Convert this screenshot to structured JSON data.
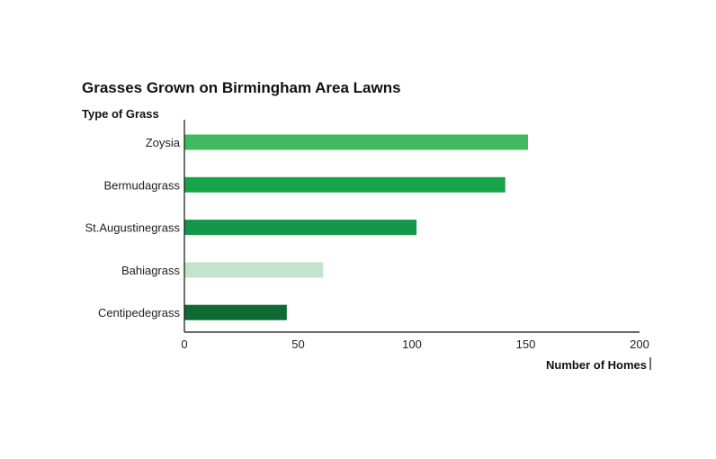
{
  "chart_data": {
    "type": "bar",
    "orientation": "horizontal",
    "title": "Grasses Grown on Birmingham Area Lawns",
    "ylabel": "Type of Grass",
    "xlabel": "Number of Homes",
    "categories": [
      "Zoysia",
      "Bermudagrass",
      "St.Augustinegrass",
      "Bahiagrass",
      "Centipedegrass"
    ],
    "values": [
      151,
      141,
      102,
      61,
      45
    ],
    "colors": [
      "#40b860",
      "#17a34a",
      "#14964a",
      "#c3e4cb",
      "#0f6a33"
    ],
    "xlim": [
      0,
      200
    ],
    "xticks": [
      "0",
      "50",
      "100",
      "150",
      "200"
    ],
    "grid": false,
    "legend": "none"
  }
}
